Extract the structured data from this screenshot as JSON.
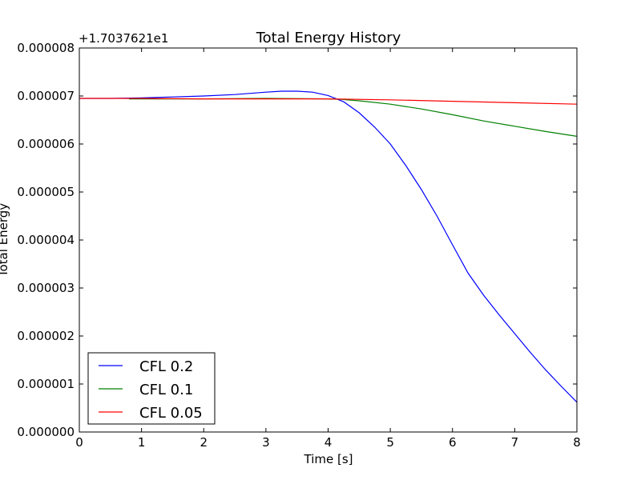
{
  "chart_data": {
    "type": "line",
    "title": "Total Energy History",
    "xlabel": "Time [s]",
    "ylabel": "Total Energy",
    "offset_label": "+1.7037621e1",
    "xlim": [
      0,
      8
    ],
    "ylim": [
      0.0,
      8e-06
    ],
    "xticks": [
      0,
      1,
      2,
      3,
      4,
      5,
      6,
      7,
      8
    ],
    "xtick_labels": [
      "0",
      "1",
      "2",
      "3",
      "4",
      "5",
      "6",
      "7",
      "8"
    ],
    "yticks": [
      0.0,
      1e-06,
      2e-06,
      3e-06,
      4e-06,
      5e-06,
      6e-06,
      7e-06,
      8e-06
    ],
    "ytick_labels": [
      "0.000000",
      "0.000001",
      "0.000002",
      "0.000003",
      "0.000004",
      "0.000005",
      "0.000006",
      "0.000007",
      "0.000008"
    ],
    "grid": false,
    "legend_position": "lower-left",
    "series": [
      {
        "name": "CFL 0.2",
        "color": "#0000ff",
        "x": [
          0,
          0.5,
          1,
          1.5,
          2,
          2.5,
          3,
          3.25,
          3.5,
          3.75,
          4,
          4.25,
          4.5,
          4.75,
          5,
          5.25,
          5.5,
          5.75,
          6,
          6.25,
          6.5,
          6.75,
          7,
          7.25,
          7.5,
          7.75,
          8
        ],
        "y": [
          6.95e-06,
          6.95e-06,
          6.96e-06,
          6.98e-06,
          7e-06,
          7.03e-06,
          7.08e-06,
          7.1e-06,
          7.1e-06,
          7.08e-06,
          7.01e-06,
          6.88e-06,
          6.65e-06,
          6.35e-06,
          6e-06,
          5.55e-06,
          5.05e-06,
          4.5e-06,
          3.9e-06,
          3.31e-06,
          2.85e-06,
          2.44e-06,
          2.05e-06,
          1.66e-06,
          1.29e-06,
          9.5e-07,
          6.2e-07
        ]
      },
      {
        "name": "CFL 0.1",
        "color": "#008000",
        "x": [
          0.8,
          1.5,
          2,
          3,
          4,
          4.2,
          4.5,
          5,
          5.5,
          6,
          6.5,
          7,
          7.5,
          8
        ],
        "y": [
          6.94e-06,
          6.94e-06,
          6.94e-06,
          6.95e-06,
          6.94e-06,
          6.93e-06,
          6.9e-06,
          6.83e-06,
          6.73e-06,
          6.61e-06,
          6.48e-06,
          6.37e-06,
          6.26e-06,
          6.16e-06
        ]
      },
      {
        "name": "CFL 0.05",
        "color": "#ff0000",
        "x": [
          0,
          1,
          2,
          3,
          4,
          5,
          6,
          7,
          8
        ],
        "y": [
          6.95e-06,
          6.95e-06,
          6.94e-06,
          6.94e-06,
          6.94e-06,
          6.92e-06,
          6.89e-06,
          6.86e-06,
          6.83e-06
        ]
      }
    ]
  }
}
